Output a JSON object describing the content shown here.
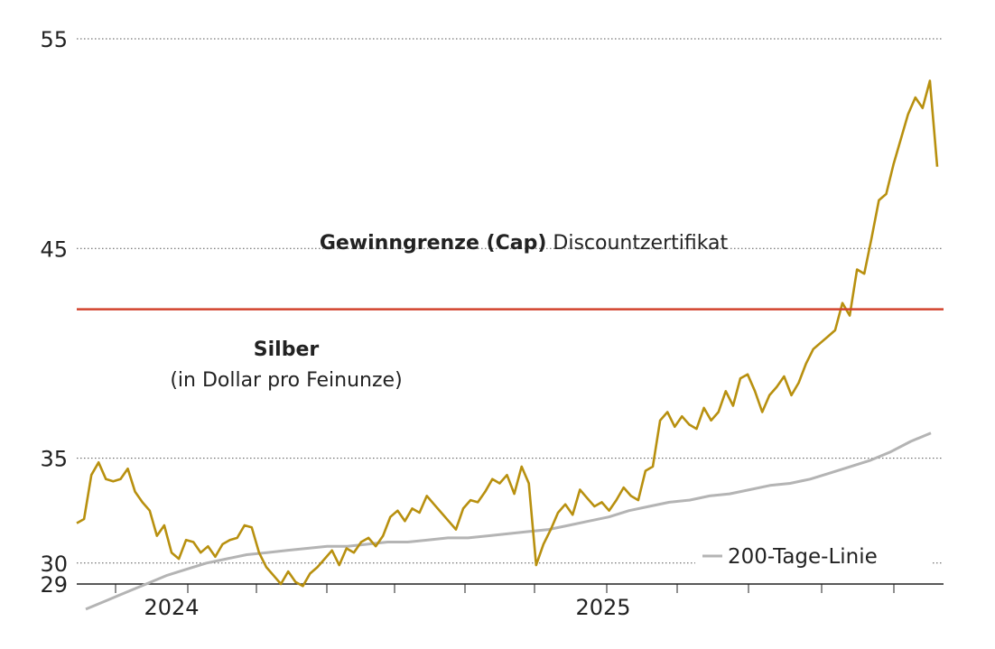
{
  "chart_data": {
    "type": "line",
    "title": "",
    "xlabel": "",
    "ylabel": "",
    "ylim": [
      29,
      55
    ],
    "yticks": [
      55,
      45,
      35,
      30,
      29
    ],
    "xticks": [
      "2024",
      "2025"
    ],
    "grid": "dotted horizontal",
    "annotations": {
      "cap_bold": "Gewinngrenze (Cap)",
      "cap_rest": " Discountzertifikat",
      "series_name": "Silber",
      "series_unit": "(in Dollar pro Feinunze)",
      "ma_legend": "200-Tage-Linie"
    },
    "cap_value": 42.1,
    "series": [
      {
        "name": "Silber",
        "color": "#b8900f",
        "values": [
          31.9,
          32.1,
          34.2,
          34.8,
          34.0,
          33.9,
          34.0,
          34.5,
          33.4,
          32.9,
          32.5,
          31.3,
          31.8,
          30.5,
          30.2,
          31.1,
          31.0,
          30.5,
          30.8,
          30.3,
          30.9,
          31.1,
          31.2,
          31.8,
          31.7,
          30.5,
          29.8,
          29.4,
          29.0,
          29.6,
          29.1,
          28.9,
          29.5,
          29.8,
          30.2,
          30.6,
          29.9,
          30.7,
          30.5,
          31.0,
          31.2,
          30.8,
          31.3,
          32.2,
          32.5,
          32.0,
          32.6,
          32.4,
          33.2,
          32.8,
          32.4,
          32.0,
          31.6,
          32.6,
          33.0,
          32.9,
          33.4,
          34.0,
          33.8,
          34.2,
          33.3,
          34.6,
          33.8,
          29.9,
          30.9,
          31.6,
          32.4,
          32.8,
          32.3,
          33.5,
          33.1,
          32.7,
          32.9,
          32.5,
          33.0,
          33.6,
          33.2,
          33.0,
          34.4,
          34.6,
          36.8,
          37.2,
          36.5,
          37.0,
          36.6,
          36.4,
          37.4,
          36.8,
          37.2,
          38.2,
          37.5,
          38.8,
          39.0,
          38.2,
          37.2,
          38.0,
          38.4,
          38.9,
          38.0,
          38.6,
          39.5,
          40.2,
          40.5,
          40.8,
          41.1,
          42.4,
          41.8,
          44.0,
          43.8,
          45.5,
          47.3,
          47.6,
          49.0,
          50.2,
          51.4,
          52.2,
          51.7,
          53.0,
          48.9
        ],
        "x_start": "2023-11",
        "x_end": "2025-10"
      },
      {
        "name": "200-Tage-Linie",
        "color": "#b4b4b4",
        "values": [
          27.8,
          28.2,
          28.6,
          29.0,
          29.4,
          29.7,
          30.0,
          30.2,
          30.4,
          30.5,
          30.6,
          30.7,
          30.8,
          30.8,
          30.9,
          31.0,
          31.0,
          31.1,
          31.2,
          31.2,
          31.3,
          31.4,
          31.5,
          31.6,
          31.8,
          32.0,
          32.2,
          32.5,
          32.7,
          32.9,
          33.0,
          33.2,
          33.3,
          33.5,
          33.7,
          33.8,
          34.0,
          34.3,
          34.6,
          34.9,
          35.3,
          35.8,
          36.2
        ],
        "x_start": "2023-11",
        "x_end": "2025-10"
      }
    ]
  },
  "colors": {
    "cap_line": "#d2432e",
    "grid": "#555555",
    "axis": "#222222"
  }
}
